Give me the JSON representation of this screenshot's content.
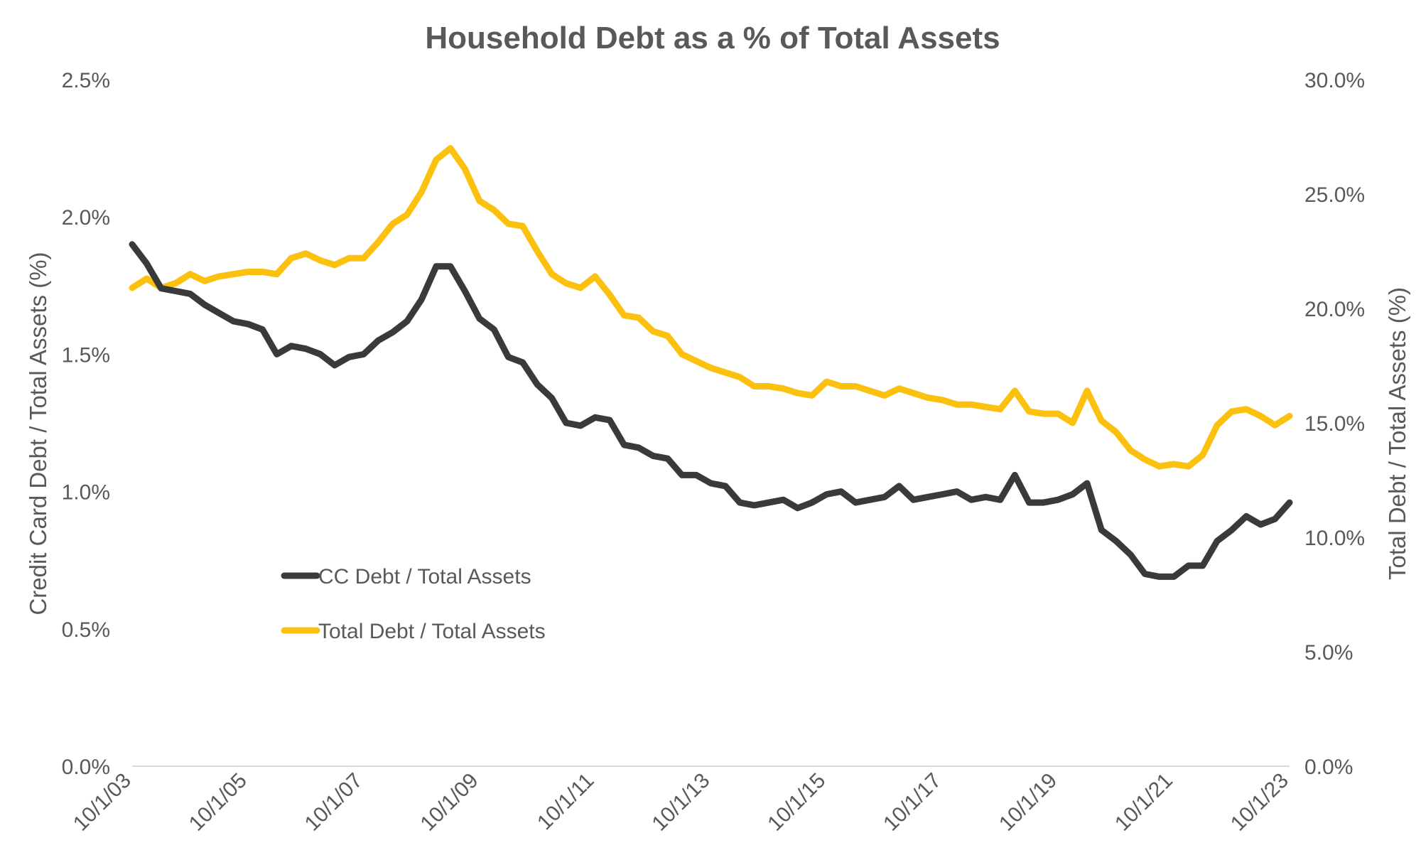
{
  "chart_data": {
    "type": "line",
    "title": "Household Debt as a % of Total Assets",
    "ylabel_left": "Credit Card Debt / Total Assets (%)",
    "ylabel_right": "Total Debt / Total Assets (%)",
    "xlabel": "",
    "x_tick_labels": [
      "10/1/03",
      "10/1/05",
      "10/1/07",
      "10/1/09",
      "10/1/11",
      "10/1/13",
      "10/1/15",
      "10/1/17",
      "10/1/19",
      "10/1/21",
      "10/1/23"
    ],
    "y_left": {
      "ticks": [
        "0.0%",
        "0.5%",
        "1.0%",
        "1.5%",
        "2.0%",
        "2.5%"
      ],
      "range": [
        0,
        2.5
      ]
    },
    "y_right": {
      "ticks": [
        "0.0%",
        "5.0%",
        "10.0%",
        "15.0%",
        "20.0%",
        "25.0%",
        "30.0%"
      ],
      "range": [
        0,
        30
      ]
    },
    "x_range": [
      "2003-10-01",
      "2023-10-01"
    ],
    "grid": false,
    "legend_position": "center-left",
    "series": [
      {
        "name": "CC Debt / Total Assets",
        "axis": "left",
        "color": "#3a3a3a",
        "points": [
          [
            "2003-10-01",
            1.9
          ],
          [
            "2004-01-01",
            1.83
          ],
          [
            "2004-04-01",
            1.74
          ],
          [
            "2004-07-01",
            1.73
          ],
          [
            "2004-10-01",
            1.72
          ],
          [
            "2005-01-01",
            1.68
          ],
          [
            "2005-04-01",
            1.65
          ],
          [
            "2005-07-01",
            1.62
          ],
          [
            "2005-10-01",
            1.61
          ],
          [
            "2006-01-01",
            1.59
          ],
          [
            "2006-04-01",
            1.5
          ],
          [
            "2006-07-01",
            1.53
          ],
          [
            "2006-10-01",
            1.52
          ],
          [
            "2007-01-01",
            1.5
          ],
          [
            "2007-04-01",
            1.46
          ],
          [
            "2007-07-01",
            1.49
          ],
          [
            "2007-10-01",
            1.5
          ],
          [
            "2008-01-01",
            1.55
          ],
          [
            "2008-04-01",
            1.58
          ],
          [
            "2008-07-01",
            1.62
          ],
          [
            "2008-10-01",
            1.7
          ],
          [
            "2009-01-01",
            1.82
          ],
          [
            "2009-04-01",
            1.82
          ],
          [
            "2009-07-01",
            1.73
          ],
          [
            "2009-10-01",
            1.63
          ],
          [
            "2010-01-01",
            1.59
          ],
          [
            "2010-04-01",
            1.49
          ],
          [
            "2010-07-01",
            1.47
          ],
          [
            "2010-10-01",
            1.39
          ],
          [
            "2011-01-01",
            1.34
          ],
          [
            "2011-04-01",
            1.25
          ],
          [
            "2011-07-01",
            1.24
          ],
          [
            "2011-10-01",
            1.27
          ],
          [
            "2012-01-01",
            1.26
          ],
          [
            "2012-04-01",
            1.17
          ],
          [
            "2012-07-01",
            1.16
          ],
          [
            "2012-10-01",
            1.13
          ],
          [
            "2013-01-01",
            1.12
          ],
          [
            "2013-04-01",
            1.06
          ],
          [
            "2013-07-01",
            1.06
          ],
          [
            "2013-10-01",
            1.03
          ],
          [
            "2014-01-01",
            1.02
          ],
          [
            "2014-04-01",
            0.96
          ],
          [
            "2014-07-01",
            0.95
          ],
          [
            "2014-10-01",
            0.96
          ],
          [
            "2015-01-01",
            0.97
          ],
          [
            "2015-04-01",
            0.94
          ],
          [
            "2015-07-01",
            0.96
          ],
          [
            "2015-10-01",
            0.99
          ],
          [
            "2016-01-01",
            1.0
          ],
          [
            "2016-04-01",
            0.96
          ],
          [
            "2016-07-01",
            0.97
          ],
          [
            "2016-10-01",
            0.98
          ],
          [
            "2017-01-01",
            1.02
          ],
          [
            "2017-04-01",
            0.97
          ],
          [
            "2017-07-01",
            0.98
          ],
          [
            "2017-10-01",
            0.99
          ],
          [
            "2018-01-01",
            1.0
          ],
          [
            "2018-04-01",
            0.97
          ],
          [
            "2018-07-01",
            0.98
          ],
          [
            "2018-10-01",
            0.97
          ],
          [
            "2019-01-01",
            1.06
          ],
          [
            "2019-04-01",
            0.96
          ],
          [
            "2019-07-01",
            0.96
          ],
          [
            "2019-10-01",
            0.97
          ],
          [
            "2020-01-01",
            0.99
          ],
          [
            "2020-04-01",
            1.03
          ],
          [
            "2020-07-01",
            0.86
          ],
          [
            "2020-10-01",
            0.82
          ],
          [
            "2021-01-01",
            0.77
          ],
          [
            "2021-04-01",
            0.7
          ],
          [
            "2021-07-01",
            0.69
          ],
          [
            "2021-10-01",
            0.69
          ],
          [
            "2022-01-01",
            0.73
          ],
          [
            "2022-04-01",
            0.73
          ],
          [
            "2022-07-01",
            0.82
          ],
          [
            "2022-10-01",
            0.86
          ],
          [
            "2023-01-01",
            0.91
          ],
          [
            "2023-04-01",
            0.88
          ],
          [
            "2023-07-01",
            0.9
          ],
          [
            "2023-10-01",
            0.96
          ]
        ]
      },
      {
        "name": "Total Debt / Total Assets",
        "axis": "right",
        "color": "#fcc10f",
        "points": [
          [
            "2003-10-01",
            20.9
          ],
          [
            "2004-01-01",
            21.3
          ],
          [
            "2004-04-01",
            20.9
          ],
          [
            "2004-07-01",
            21.1
          ],
          [
            "2004-10-01",
            21.5
          ],
          [
            "2005-01-01",
            21.2
          ],
          [
            "2005-04-01",
            21.4
          ],
          [
            "2005-07-01",
            21.5
          ],
          [
            "2005-10-01",
            21.6
          ],
          [
            "2006-01-01",
            21.6
          ],
          [
            "2006-04-01",
            21.5
          ],
          [
            "2006-07-01",
            22.2
          ],
          [
            "2006-10-01",
            22.4
          ],
          [
            "2007-01-01",
            22.1
          ],
          [
            "2007-04-01",
            21.9
          ],
          [
            "2007-07-01",
            22.2
          ],
          [
            "2007-10-01",
            22.2
          ],
          [
            "2008-01-01",
            22.9
          ],
          [
            "2008-04-01",
            23.7
          ],
          [
            "2008-07-01",
            24.1
          ],
          [
            "2008-10-01",
            25.1
          ],
          [
            "2009-01-01",
            26.5
          ],
          [
            "2009-04-01",
            27.0
          ],
          [
            "2009-07-01",
            26.1
          ],
          [
            "2009-10-01",
            24.7
          ],
          [
            "2010-01-01",
            24.3
          ],
          [
            "2010-04-01",
            23.7
          ],
          [
            "2010-07-01",
            23.6
          ],
          [
            "2010-10-01",
            22.5
          ],
          [
            "2011-01-01",
            21.5
          ],
          [
            "2011-04-01",
            21.1
          ],
          [
            "2011-07-01",
            20.9
          ],
          [
            "2011-10-01",
            21.4
          ],
          [
            "2012-01-01",
            20.6
          ],
          [
            "2012-04-01",
            19.7
          ],
          [
            "2012-07-01",
            19.6
          ],
          [
            "2012-10-01",
            19.0
          ],
          [
            "2013-01-01",
            18.8
          ],
          [
            "2013-04-01",
            18.0
          ],
          [
            "2013-07-01",
            17.7
          ],
          [
            "2013-10-01",
            17.4
          ],
          [
            "2014-01-01",
            17.2
          ],
          [
            "2014-04-01",
            17.0
          ],
          [
            "2014-07-01",
            16.6
          ],
          [
            "2014-10-01",
            16.6
          ],
          [
            "2015-01-01",
            16.5
          ],
          [
            "2015-04-01",
            16.3
          ],
          [
            "2015-07-01",
            16.2
          ],
          [
            "2015-10-01",
            16.8
          ],
          [
            "2016-01-01",
            16.6
          ],
          [
            "2016-04-01",
            16.6
          ],
          [
            "2016-07-01",
            16.4
          ],
          [
            "2016-10-01",
            16.2
          ],
          [
            "2017-01-01",
            16.5
          ],
          [
            "2017-04-01",
            16.3
          ],
          [
            "2017-07-01",
            16.1
          ],
          [
            "2017-10-01",
            16.0
          ],
          [
            "2018-01-01",
            15.8
          ],
          [
            "2018-04-01",
            15.8
          ],
          [
            "2018-07-01",
            15.7
          ],
          [
            "2018-10-01",
            15.6
          ],
          [
            "2019-01-01",
            16.4
          ],
          [
            "2019-04-01",
            15.5
          ],
          [
            "2019-07-01",
            15.4
          ],
          [
            "2019-10-01",
            15.4
          ],
          [
            "2020-01-01",
            15.0
          ],
          [
            "2020-04-01",
            16.4
          ],
          [
            "2020-07-01",
            15.1
          ],
          [
            "2020-10-01",
            14.6
          ],
          [
            "2021-01-01",
            13.8
          ],
          [
            "2021-04-01",
            13.4
          ],
          [
            "2021-07-01",
            13.1
          ],
          [
            "2021-10-01",
            13.2
          ],
          [
            "2022-01-01",
            13.1
          ],
          [
            "2022-04-01",
            13.6
          ],
          [
            "2022-07-01",
            14.9
          ],
          [
            "2022-10-01",
            15.5
          ],
          [
            "2023-01-01",
            15.6
          ],
          [
            "2023-04-01",
            15.3
          ],
          [
            "2023-07-01",
            14.9
          ],
          [
            "2023-10-01",
            15.3
          ]
        ]
      }
    ]
  },
  "colors": {
    "text": "#595959",
    "axis_line": "#d9d9d9",
    "cc_series": "#3a3a3a",
    "total_series": "#fcc10f"
  }
}
